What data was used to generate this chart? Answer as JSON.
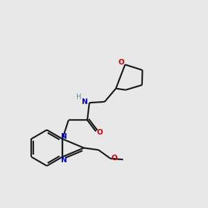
{
  "background_color": "#e8e8e8",
  "bond_color": "#1a1a1a",
  "N_color": "#0000cc",
  "O_color": "#cc0000",
  "H_color": "#4a9090",
  "bond_width": 1.6,
  "figsize": [
    3.0,
    3.0
  ],
  "dpi": 100,
  "xlim": [
    0,
    10
  ],
  "ylim": [
    0,
    10
  ]
}
